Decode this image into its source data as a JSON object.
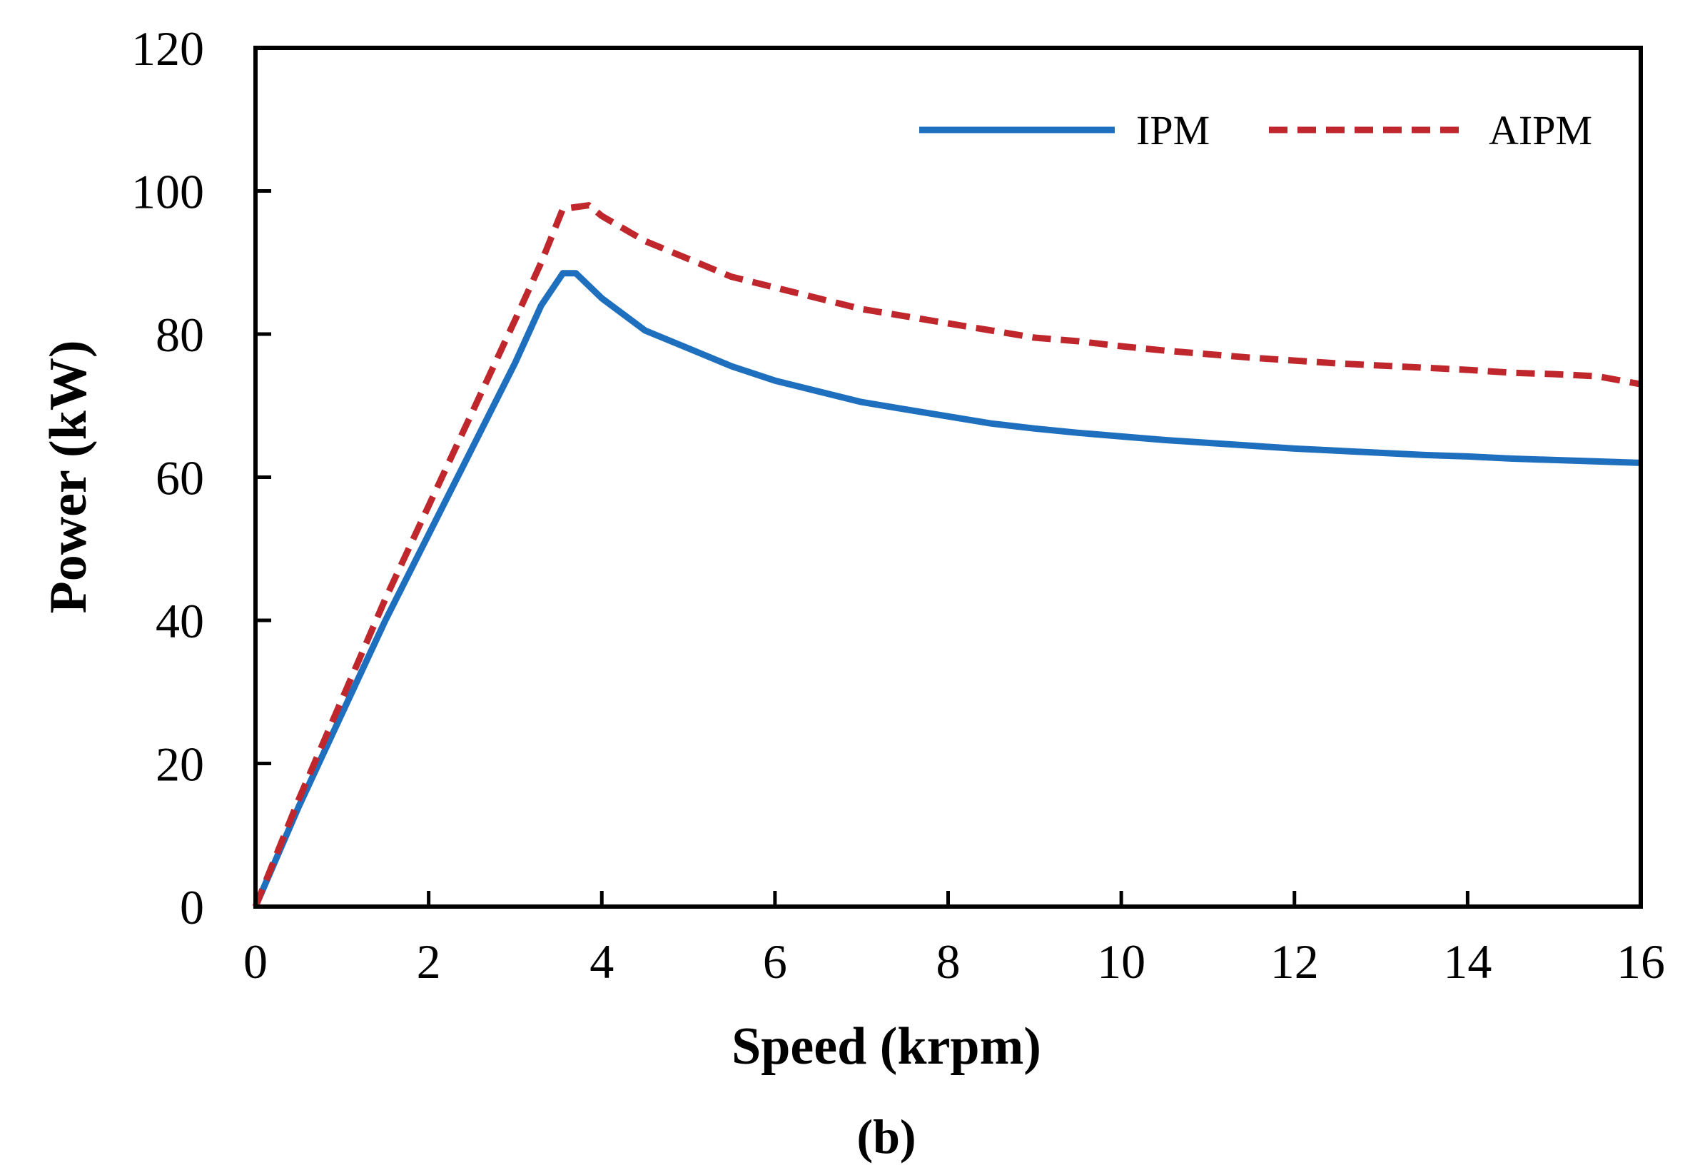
{
  "chart_data": {
    "type": "line",
    "title": "",
    "xlabel": "Speed (krpm)",
    "ylabel": "Power (kW)",
    "caption": "(b)",
    "xlim": [
      0,
      16
    ],
    "ylim": [
      0,
      120
    ],
    "xticks": [
      0,
      2,
      4,
      6,
      8,
      10,
      12,
      14,
      16
    ],
    "yticks": [
      0,
      20,
      40,
      60,
      80,
      100,
      120
    ],
    "grid": false,
    "legend_position": "top-right",
    "series": [
      {
        "name": "IPM",
        "color": "#1f6fbf",
        "style": "solid",
        "x": [
          0,
          0.5,
          1,
          1.5,
          2,
          2.5,
          3,
          3.3,
          3.55,
          3.7,
          4,
          4.5,
          5,
          5.5,
          6,
          6.5,
          7,
          7.5,
          8,
          8.5,
          9,
          9.5,
          10,
          10.5,
          11,
          11.5,
          12,
          12.5,
          13,
          13.5,
          14,
          14.5,
          15,
          15.5,
          16
        ],
        "y": [
          0,
          14,
          27,
          40,
          52,
          64,
          76,
          84,
          88.5,
          88.5,
          85,
          80.5,
          78,
          75.5,
          73.5,
          72,
          70.5,
          69.5,
          68.5,
          67.5,
          66.8,
          66.2,
          65.7,
          65.2,
          64.8,
          64.4,
          64,
          63.7,
          63.4,
          63.1,
          62.9,
          62.6,
          62.4,
          62.2,
          62
        ]
      },
      {
        "name": "AIPM",
        "color": "#c0272d",
        "style": "dashed",
        "x": [
          0,
          0.5,
          1,
          1.5,
          2,
          2.5,
          3,
          3.3,
          3.55,
          3.85,
          4,
          4.5,
          5,
          5.5,
          6,
          6.5,
          7,
          7.5,
          8,
          8.5,
          9,
          9.5,
          10,
          10.5,
          11,
          11.5,
          12,
          12.5,
          13,
          13.5,
          14,
          14.5,
          15,
          15.5,
          16
        ],
        "y": [
          0,
          15,
          29,
          43,
          56,
          69,
          82,
          90,
          97.5,
          98,
          96.5,
          93,
          90.5,
          88,
          86.5,
          85,
          83.5,
          82.5,
          81.5,
          80.5,
          79.5,
          79,
          78.3,
          77.7,
          77.2,
          76.7,
          76.3,
          75.9,
          75.6,
          75.3,
          75,
          74.6,
          74.4,
          74.1,
          73
        ]
      }
    ]
  }
}
